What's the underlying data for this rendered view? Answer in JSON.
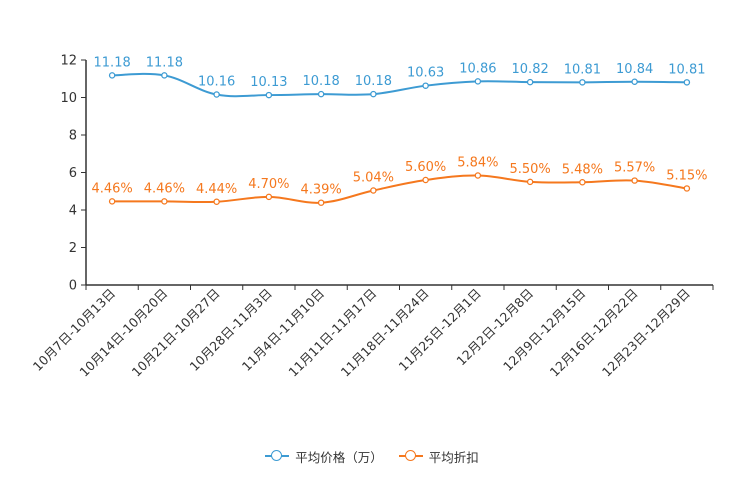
{
  "chart_data": {
    "type": "line",
    "categories": [
      "10月7日-10月13日",
      "10月14日-10月20日",
      "10月21日-10月27日",
      "10月28日-11月3日",
      "11月4日-11月10日",
      "11月11日-11月17日",
      "11月18日-11月24日",
      "11月25日-12月1日",
      "12月2日-12月8日",
      "12月9日-12月15日",
      "12月16日-12月22日",
      "12月23日-12月29日"
    ],
    "ylim": [
      0,
      12
    ],
    "yticks": [
      0,
      2,
      4,
      6,
      8,
      10,
      12
    ],
    "series": [
      {
        "name": "平均价格（万）",
        "color": "#3d9bd3",
        "values": [
          11.18,
          11.18,
          10.16,
          10.13,
          10.18,
          10.18,
          10.63,
          10.86,
          10.82,
          10.81,
          10.84,
          10.81
        ],
        "labels": [
          "11.18",
          "11.18",
          "10.16",
          "10.13",
          "10.18",
          "10.18",
          "10.63",
          "10.86",
          "10.82",
          "10.81",
          "10.84",
          "10.81"
        ]
      },
      {
        "name": "平均折扣",
        "color": "#f5781e",
        "values": [
          4.46,
          4.46,
          4.44,
          4.7,
          4.39,
          5.04,
          5.6,
          5.84,
          5.5,
          5.48,
          5.57,
          5.15
        ],
        "labels": [
          "4.46%",
          "4.46%",
          "4.44%",
          "4.70%",
          "4.39%",
          "5.04%",
          "5.60%",
          "5.84%",
          "5.50%",
          "5.48%",
          "5.57%",
          "5.15%"
        ]
      }
    ],
    "legend": {
      "position": "bottom",
      "items": [
        {
          "label": "平均价格（万）",
          "color": "#3d9bd3"
        },
        {
          "label": "平均折扣",
          "color": "#f5781e"
        }
      ]
    }
  }
}
